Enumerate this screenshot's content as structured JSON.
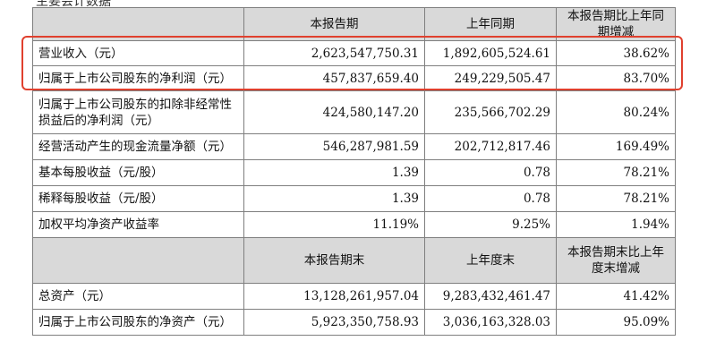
{
  "top_cut_text": "主要会计数据",
  "section1": {
    "headers": [
      "本报告期",
      "上年同期",
      "本报告期比上年同期增减"
    ],
    "rows": [
      {
        "label": "营业收入（元）",
        "current": "2,623,547,750.31",
        "prior": "1,892,605,524.61",
        "change": "38.62%"
      },
      {
        "label": "归属于上市公司股东的净利润（元）",
        "current": "457,837,659.40",
        "prior": "249,229,505.47",
        "change": "83.70%"
      },
      {
        "label": "归属于上市公司股东的扣除非经常性损益后的净利润（元）",
        "current": "424,580,147.20",
        "prior": "235,566,702.29",
        "change": "80.24%"
      },
      {
        "label": "经营活动产生的现金流量净额（元）",
        "current": "546,287,981.59",
        "prior": "202,712,817.46",
        "change": "169.49%"
      },
      {
        "label": "基本每股收益（元/股）",
        "current": "1.39",
        "prior": "0.78",
        "change": "78.21%"
      },
      {
        "label": "稀释每股收益（元/股）",
        "current": "1.39",
        "prior": "0.78",
        "change": "78.21%"
      },
      {
        "label": "加权平均净资产收益率",
        "current": "11.19%",
        "prior": "9.25%",
        "change": "1.94%"
      }
    ]
  },
  "section2": {
    "headers": [
      "本报告期末",
      "上年度末",
      "本报告期末比上年度末增减"
    ],
    "rows": [
      {
        "label": "总资产（元）",
        "current": "13,128,261,957.04",
        "prior": "9,283,432,461.47",
        "change": "41.42%"
      },
      {
        "label": "归属于上市公司股东的净资产（元）",
        "current": "5,923,350,758.93",
        "prior": "3,036,163,328.03",
        "change": "95.09%"
      }
    ]
  },
  "highlight": {
    "color": "#e0402e"
  }
}
